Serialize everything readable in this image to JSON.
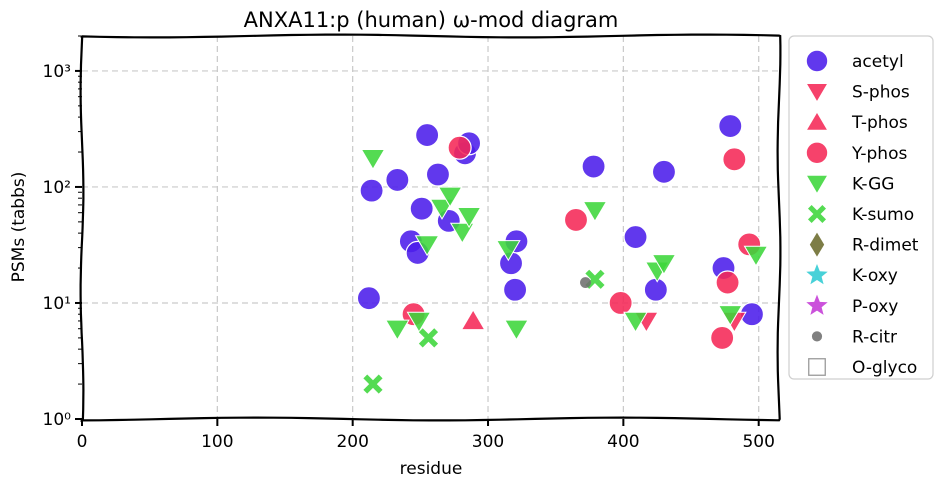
{
  "chart_data": {
    "type": "scatter",
    "title": "ANXA11:p (human) ω-mod diagram",
    "xlabel": "residue",
    "ylabel": "PSMs (tabbs)",
    "xlim": [
      0,
      515
    ],
    "ylim": [
      1,
      2000
    ],
    "yscale": "log",
    "xticks": [
      0,
      100,
      200,
      300,
      400,
      500
    ],
    "xtick_labels": [
      "0",
      "100",
      "200",
      "300",
      "400",
      "500"
    ],
    "yticks": [
      1,
      10,
      100,
      1000
    ],
    "ytick_labels": [
      "10⁰",
      "10¹",
      "10²",
      "10³"
    ],
    "grid": true,
    "legend_position": "outside-right",
    "series": [
      {
        "name": "acetyl",
        "marker": "circle",
        "color": "#4B1DEB",
        "points": [
          [
            212,
            11
          ],
          [
            214,
            93
          ],
          [
            233,
            115
          ],
          [
            243,
            34
          ],
          [
            248,
            27
          ],
          [
            251,
            65
          ],
          [
            255,
            280
          ],
          [
            263,
            128
          ],
          [
            271,
            51
          ],
          [
            283,
            195
          ],
          [
            286,
            238
          ],
          [
            317,
            22
          ],
          [
            320,
            13
          ],
          [
            321,
            34
          ],
          [
            378,
            150
          ],
          [
            409,
            37
          ],
          [
            424,
            13
          ],
          [
            430,
            135
          ],
          [
            474,
            20
          ],
          [
            479,
            335
          ],
          [
            495,
            8
          ]
        ]
      },
      {
        "name": "S-phos",
        "marker": "triangle-down",
        "color": "#F52856",
        "points": [
          [
            417,
            7
          ],
          [
            482,
            7
          ]
        ]
      },
      {
        "name": "T-phos",
        "marker": "triangle-up",
        "color": "#F52856",
        "points": [
          [
            289,
            7
          ]
        ]
      },
      {
        "name": "Y-phos",
        "marker": "circle",
        "color": "#F52856",
        "points": [
          [
            245,
            8
          ],
          [
            279,
            218
          ],
          [
            365,
            52
          ],
          [
            398,
            10
          ],
          [
            473,
            5
          ],
          [
            477,
            15
          ],
          [
            482,
            173
          ],
          [
            493,
            32
          ]
        ]
      },
      {
        "name": "K-GG",
        "marker": "triangle-down",
        "color": "#3CD63A",
        "points": [
          [
            215,
            177
          ],
          [
            233,
            6
          ],
          [
            249,
            7
          ],
          [
            255,
            32
          ],
          [
            266,
            66
          ],
          [
            272,
            84
          ],
          [
            281,
            41
          ],
          [
            286,
            56
          ],
          [
            315,
            29
          ],
          [
            321,
            6
          ],
          [
            379,
            63
          ],
          [
            409,
            7
          ],
          [
            425,
            19
          ],
          [
            430,
            22
          ],
          [
            479,
            8
          ],
          [
            498,
            26
          ]
        ]
      },
      {
        "name": "K-sumo",
        "marker": "x",
        "color": "#3CD63A",
        "points": [
          [
            215,
            2
          ],
          [
            256,
            5
          ],
          [
            379,
            16
          ]
        ]
      },
      {
        "name": "R-dimet",
        "marker": "diamond",
        "color": "#6B6B2C",
        "points": []
      },
      {
        "name": "K-oxy",
        "marker": "star",
        "color": "#2FCBD3",
        "points": []
      },
      {
        "name": "P-oxy",
        "marker": "star",
        "color": "#C43AD6",
        "points": []
      },
      {
        "name": "R-citr",
        "marker": "small-circle",
        "color": "#6E6E6E",
        "points": [
          [
            372,
            15
          ]
        ]
      },
      {
        "name": "O-glyco",
        "marker": "square-open",
        "color": "#9A9A9A",
        "points": []
      }
    ]
  }
}
